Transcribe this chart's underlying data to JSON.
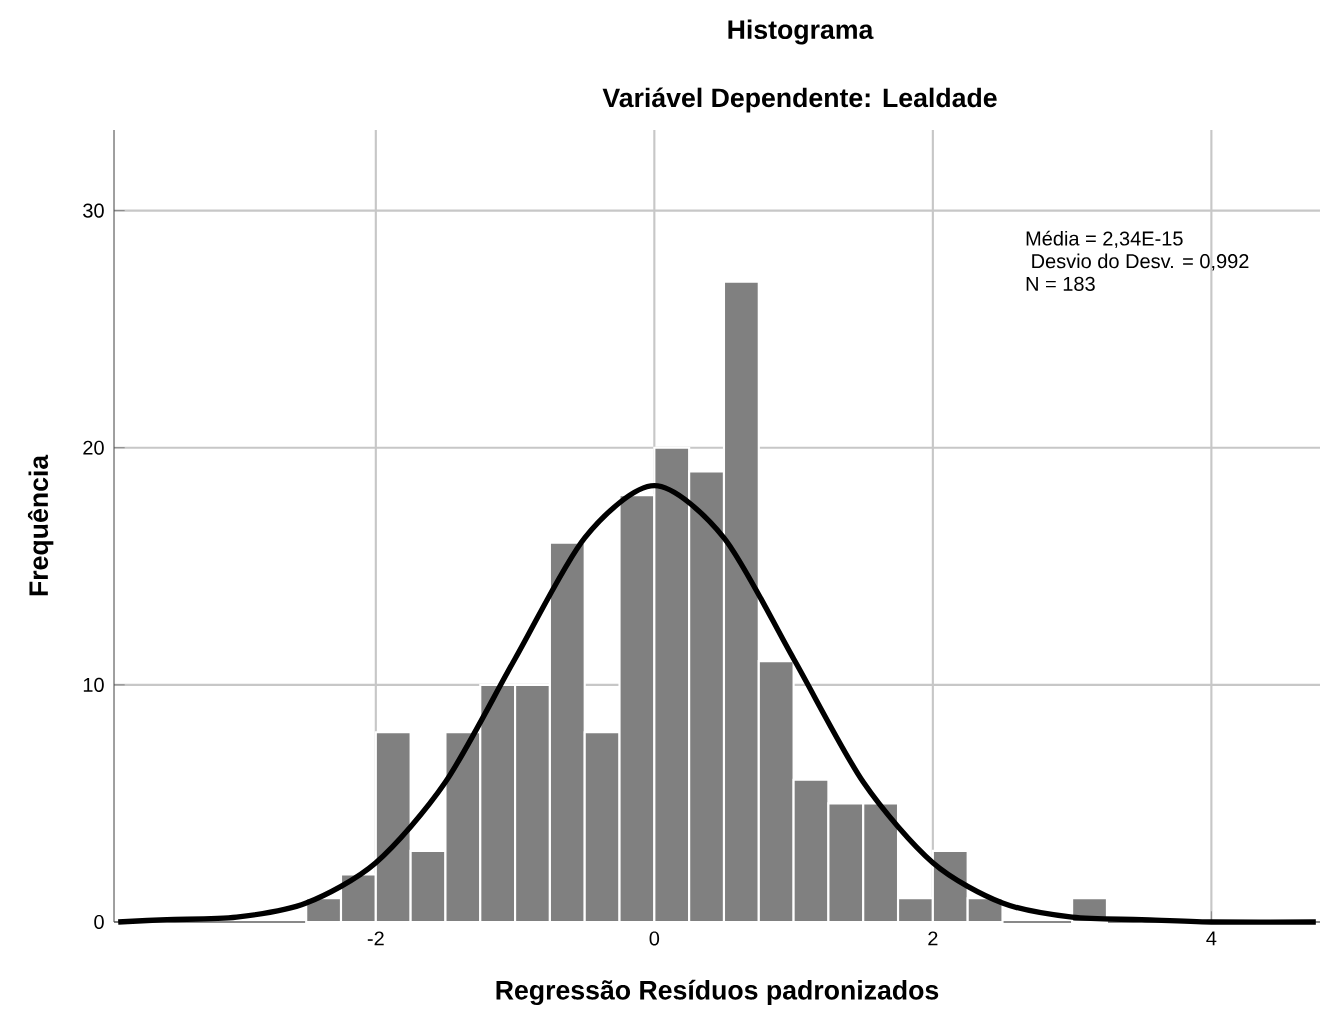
{
  "chart_data": {
    "type": "histogram",
    "title": "Histograma",
    "subtitle": "Variável Dependente: Lealdade",
    "xlabel": "Regressão Resíduos padronizados",
    "ylabel": "Frequência",
    "series": [
      {
        "type": "histogram",
        "color": "#808080",
        "bins": [
          -2.5,
          -2.25,
          -2.0,
          -1.75,
          -1.5,
          -1.25,
          -1.0,
          -0.75,
          -0.5,
          -0.25,
          0.0,
          0.25,
          0.5,
          0.75,
          1.0,
          1.25,
          1.5,
          1.75,
          2.0,
          2.25,
          2.5,
          2.75,
          3.0,
          3.25
        ],
        "values": [
          1,
          2,
          8,
          3,
          8,
          10,
          10,
          16,
          8,
          18,
          20,
          19,
          27,
          11,
          6,
          5,
          5,
          1,
          3,
          1,
          0,
          0,
          1
        ]
      },
      {
        "type": "line",
        "color": "#000000",
        "x": [
          -3.85,
          -3.5,
          -3.0,
          -2.5,
          -2.0,
          -1.5,
          -1.0,
          -0.5,
          0.0,
          0.5,
          1.0,
          1.5,
          2.0,
          2.5,
          3.0,
          3.5,
          4.0,
          4.75
        ],
        "values": [
          0,
          0.1,
          0.2,
          0.8,
          2.5,
          5.9,
          11.1,
          16.2,
          18.4,
          16.2,
          11.1,
          5.9,
          2.5,
          0.8,
          0.2,
          0.1,
          0,
          0
        ]
      }
    ],
    "annotations": [
      "Média = 2,34E-15",
      " Desvio do Desv. = 0,992",
      "N = 183"
    ],
    "xlim": [
      -3.88,
      4.78
    ],
    "ylim": [
      0,
      33.4
    ],
    "xticks": [
      -2,
      0,
      2,
      4
    ],
    "yticks": [
      0,
      10,
      20,
      30
    ],
    "grid": true
  }
}
